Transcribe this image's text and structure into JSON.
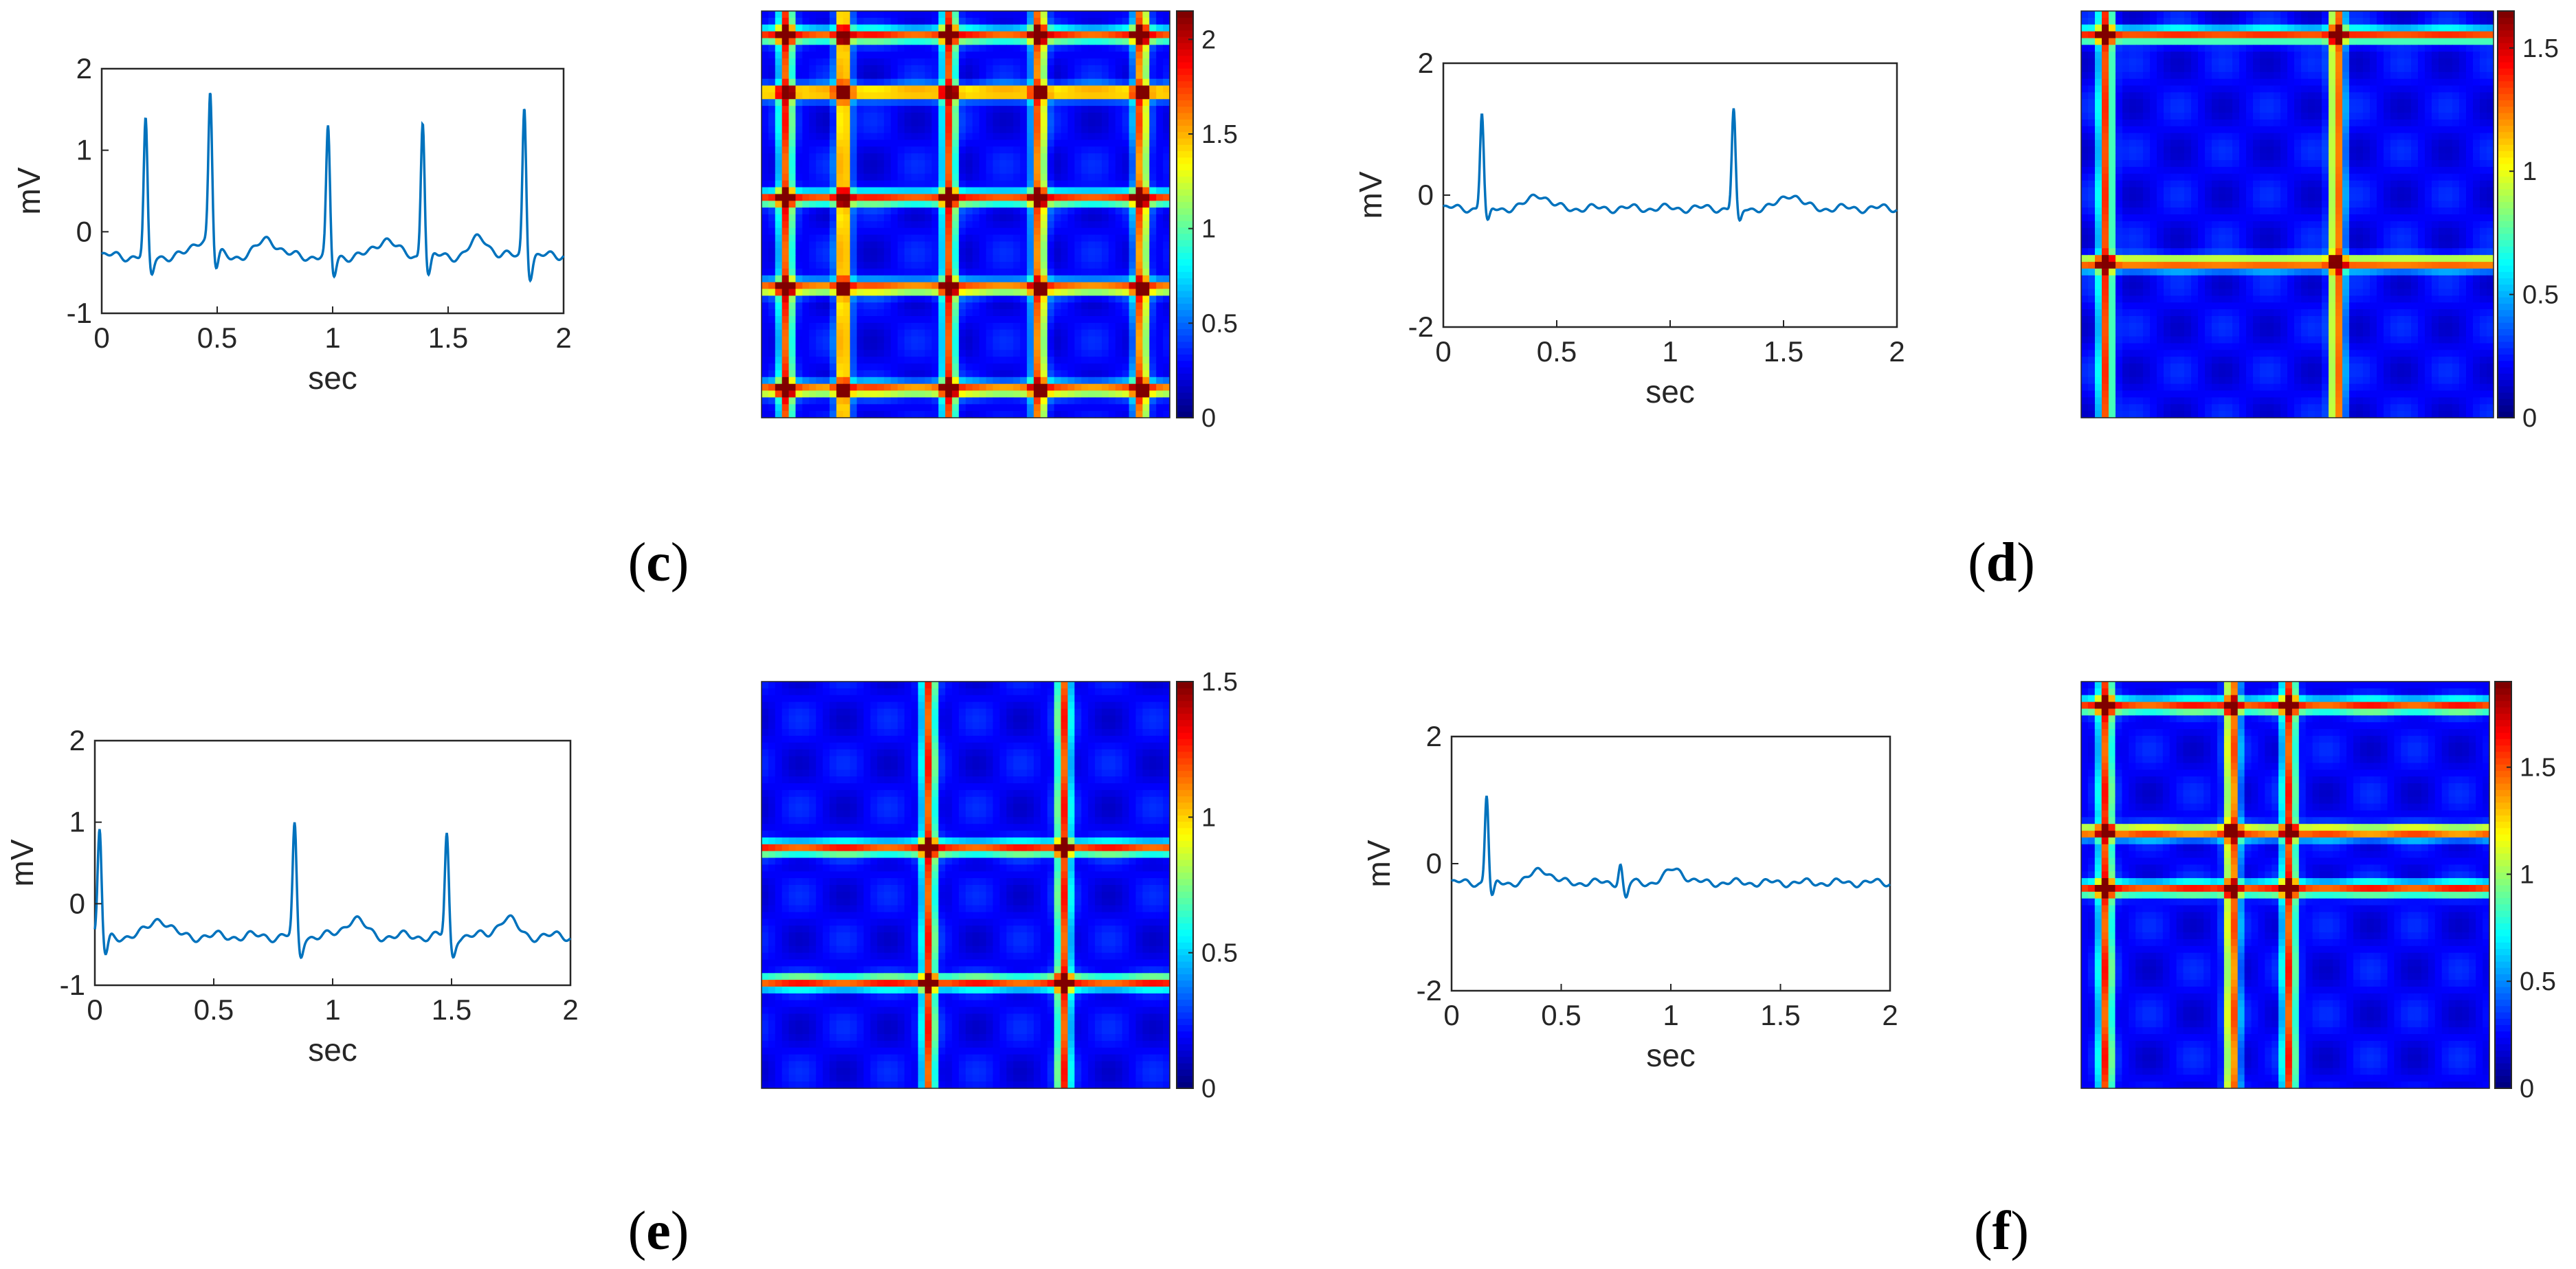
{
  "panels": [
    {
      "label": "c",
      "ecg": {
        "xlabel": "sec",
        "ylabel": "mV",
        "xlim": [
          0,
          2
        ],
        "ylim": [
          -1,
          2
        ],
        "xticks": [
          "0",
          "0.5",
          "1",
          "1.5",
          "2"
        ],
        "yticks": [
          "-1",
          "0",
          "1",
          "2"
        ],
        "color": "#0072BD",
        "baseline": -0.3,
        "beats": [
          {
            "t": 0.19,
            "amp": 1.35
          },
          {
            "t": 0.47,
            "amp": 1.55
          },
          {
            "t": 0.98,
            "amp": 1.25
          },
          {
            "t": 1.39,
            "amp": 1.4
          },
          {
            "t": 1.83,
            "amp": 1.55
          }
        ]
      },
      "heatmap": {
        "colorbar_ticks": [
          "0",
          "0.5",
          "1",
          "1.5",
          "2"
        ],
        "cmax": 2.15,
        "lines": [
          0.06,
          0.2,
          0.46,
          0.68,
          0.93
        ]
      }
    },
    {
      "label": "d",
      "ecg": {
        "xlabel": "sec",
        "ylabel": "mV",
        "xlim": [
          0,
          2
        ],
        "ylim": [
          -2,
          2
        ],
        "xticks": [
          "0",
          "0.5",
          "1",
          "1.5",
          "2"
        ],
        "yticks": [
          "-2",
          "0",
          "2"
        ],
        "color": "#0072BD",
        "baseline": -0.2,
        "beats": [
          {
            "t": 0.17,
            "amp": 1.25
          },
          {
            "t": 1.28,
            "amp": 1.3
          }
        ]
      },
      "heatmap": {
        "colorbar_ticks": [
          "0",
          "0.5",
          "1",
          "1.5"
        ],
        "cmax": 1.65,
        "lines": [
          0.06,
          0.62
        ]
      }
    },
    {
      "label": "e",
      "ecg": {
        "xlabel": "sec",
        "ylabel": "mV",
        "xlim": [
          0,
          2
        ],
        "ylim": [
          -1,
          2
        ],
        "xticks": [
          "0",
          "0.5",
          "1",
          "1.5",
          "2"
        ],
        "yticks": [
          "-1",
          "0",
          "1",
          "2"
        ],
        "color": "#0072BD",
        "baseline": -0.4,
        "beats": [
          {
            "t": 0.02,
            "amp": 0.9
          },
          {
            "t": 0.84,
            "amp": 0.95
          },
          {
            "t": 1.48,
            "amp": 0.85
          }
        ]
      },
      "heatmap": {
        "colorbar_ticks": [
          "0",
          "0.5",
          "1",
          "1.5"
        ],
        "cmax": 1.5,
        "lines": [
          0.41,
          0.74
        ]
      }
    },
    {
      "label": "f",
      "ecg": {
        "xlabel": "sec",
        "ylabel": "mV",
        "xlim": [
          0,
          2
        ],
        "ylim": [
          -2,
          2
        ],
        "xticks": [
          "0",
          "0.5",
          "1",
          "1.5",
          "2"
        ],
        "yticks": [
          "-2",
          "0",
          "2"
        ],
        "color": "#0072BD",
        "baseline": -0.3,
        "beats": [
          {
            "t": 0.16,
            "amp": 1.1
          },
          {
            "t": 0.77,
            "amp": 0.0
          }
        ]
      },
      "heatmap": {
        "colorbar_ticks": [
          "0",
          "0.5",
          "1",
          "1.5"
        ],
        "cmax": 1.9,
        "lines": [
          0.06,
          0.37,
          0.51
        ]
      }
    }
  ],
  "chart_data": [
    {
      "type": "line",
      "panel": "c",
      "xlabel": "sec",
      "ylabel": "mV",
      "xlim": [
        0,
        2
      ],
      "ylim": [
        -1,
        2
      ],
      "series": [
        {
          "x": [
            0,
            0.19,
            0.47,
            0.98,
            1.39,
            1.83,
            2.0
          ],
          "values": [
            -0.3,
            1.35,
            1.55,
            1.25,
            1.4,
            1.55,
            -0.2
          ]
        }
      ]
    },
    {
      "type": "heatmap",
      "panel": "c",
      "colorbar_range": [
        0,
        2.15
      ]
    },
    {
      "type": "line",
      "panel": "d",
      "xlabel": "sec",
      "ylabel": "mV",
      "xlim": [
        0,
        2
      ],
      "ylim": [
        -2,
        2
      ],
      "series": [
        {
          "x": [
            0,
            0.17,
            0.42,
            1.28,
            1.57,
            2.0
          ],
          "values": [
            -0.2,
            1.25,
            0.1,
            1.3,
            0.05,
            -0.25
          ]
        }
      ]
    },
    {
      "type": "heatmap",
      "panel": "d",
      "colorbar_range": [
        0,
        1.65
      ]
    },
    {
      "type": "line",
      "panel": "e",
      "xlabel": "sec",
      "ylabel": "mV",
      "xlim": [
        0,
        2
      ],
      "ylim": [
        -1,
        2
      ],
      "series": [
        {
          "x": [
            0,
            0.02,
            0.84,
            1.48,
            2.0
          ],
          "values": [
            0.9,
            0.9,
            0.95,
            0.85,
            -0.35
          ]
        }
      ]
    },
    {
      "type": "heatmap",
      "panel": "e",
      "colorbar_range": [
        0,
        1.5
      ]
    },
    {
      "type": "line",
      "panel": "f",
      "xlabel": "sec",
      "ylabel": "mV",
      "xlim": [
        0,
        2
      ],
      "ylim": [
        -2,
        2
      ],
      "series": [
        {
          "x": [
            0,
            0.16,
            0.4,
            0.77,
            1.03,
            2.0
          ],
          "values": [
            -0.3,
            1.1,
            0.0,
            0.0,
            0.45,
            -0.3
          ]
        }
      ]
    },
    {
      "type": "heatmap",
      "panel": "f",
      "colorbar_range": [
        0,
        1.9
      ]
    }
  ]
}
